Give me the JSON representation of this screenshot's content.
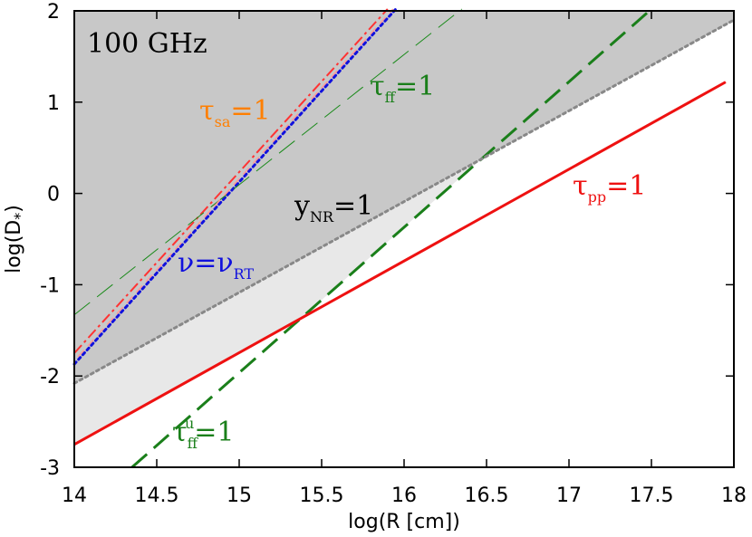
{
  "chart_data": {
    "type": "line",
    "title": "",
    "xlabel": "log(R [cm])",
    "ylabel": "log(D",
    "ylabel_sub": "*",
    "ylabel_close": ")",
    "xlim": [
      14,
      18
    ],
    "ylim": [
      -3,
      2
    ],
    "xticks": [
      14,
      14.5,
      15,
      15.5,
      16,
      16.5,
      17,
      17.5,
      18
    ],
    "xtick_labels": [
      "14",
      "14.5",
      "15",
      "15.5",
      "16",
      "16.5",
      "17",
      "17.5",
      "18"
    ],
    "yticks": [
      -3,
      -2,
      -1,
      0,
      1,
      2
    ],
    "ytick_labels": [
      "-3",
      "-2",
      "-1",
      "0",
      "1",
      "2"
    ],
    "grid": false,
    "legend": "none",
    "annotations": {
      "frequency": "100 GHz",
      "tau_sa": {
        "main": "τ",
        "sub": "sa",
        "tail": "=1",
        "color": "#ff7f00"
      },
      "tau_ff": {
        "main": "τ",
        "sub": "ff",
        "tail": "=1",
        "color": "#1a7f1a"
      },
      "y_nr": {
        "main": "y",
        "sub": "NR",
        "tail": "=1",
        "color": "#000000"
      },
      "tau_pp": {
        "main": "τ",
        "sub": "pp",
        "tail": "=1",
        "color": "#ee1111"
      },
      "nu_rt": {
        "main": "ν=ν",
        "sub": "RT",
        "tail": "",
        "color": "#1111dd"
      },
      "tau_ff_u": {
        "main": "τ",
        "sub": "ff",
        "sup": "u",
        "tail": "=1",
        "color": "#1a7f1a"
      }
    },
    "series": [
      {
        "id": "tau_sa",
        "x": [
          14.0,
          15.9
        ],
        "y": [
          -1.75,
          2.02
        ],
        "color": "#ff3333",
        "style": "dashdot",
        "width": 2
      },
      {
        "id": "nu_rt",
        "x": [
          14.0,
          15.95
        ],
        "y": [
          -1.87,
          2.02
        ],
        "color": "#1111dd",
        "style": "dotted",
        "width": 3
      },
      {
        "id": "tau_ff",
        "x": [
          14.0,
          16.35
        ],
        "y": [
          -1.33,
          2.02
        ],
        "color": "#1a8a1a",
        "style": "dashed",
        "width": 1
      },
      {
        "id": "tau_ff_u",
        "x": [
          14.35,
          17.5
        ],
        "y": [
          -3.0,
          2.02
        ],
        "color": "#1a7f1a",
        "style": "longdash",
        "width": 3
      },
      {
        "id": "y_nr",
        "x": [
          14.0,
          18.0
        ],
        "y": [
          -2.08,
          1.9
        ],
        "color": "#888888",
        "style": "dotted",
        "width": 3
      },
      {
        "id": "tau_pp",
        "x": [
          14.0,
          17.95
        ],
        "y": [
          -2.75,
          1.22
        ],
        "color": "#ee1111",
        "style": "solid",
        "width": 3
      }
    ],
    "regions": [
      {
        "id": "dark-shade",
        "color": "#c8c8c8"
      },
      {
        "id": "light-shade",
        "color": "#e8e8e8"
      }
    ]
  }
}
